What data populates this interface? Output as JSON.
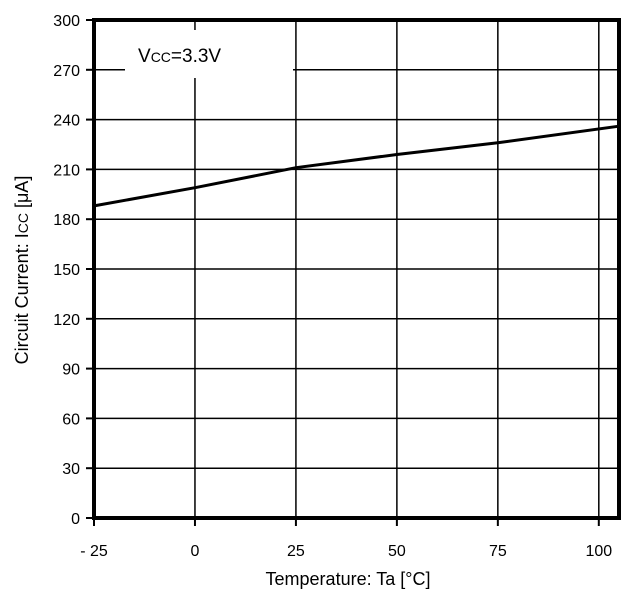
{
  "chart_data": {
    "type": "line",
    "xlabel": "Temperature: Ta [°C]",
    "ylabel_main": "Circuit Current: I",
    "ylabel_sub": "CC",
    "ylabel_unit": " [μA]",
    "annotation_main": "V",
    "annotation_sub": "CC",
    "annotation_value": "=3.3V",
    "xlim": [
      -25,
      105
    ],
    "ylim": [
      0,
      300
    ],
    "xticks": [
      -25,
      0,
      25,
      50,
      75,
      100
    ],
    "xtick_labels": [
      "- 25",
      "0",
      "25",
      "50",
      "75",
      "100"
    ],
    "yticks": [
      0,
      30,
      60,
      90,
      120,
      150,
      180,
      210,
      240,
      270,
      300
    ],
    "grid": true,
    "series": [
      {
        "x": [
          -25,
          0,
          25,
          50,
          75,
          105
        ],
        "y": [
          188,
          199,
          211,
          219,
          226,
          236
        ]
      }
    ]
  }
}
